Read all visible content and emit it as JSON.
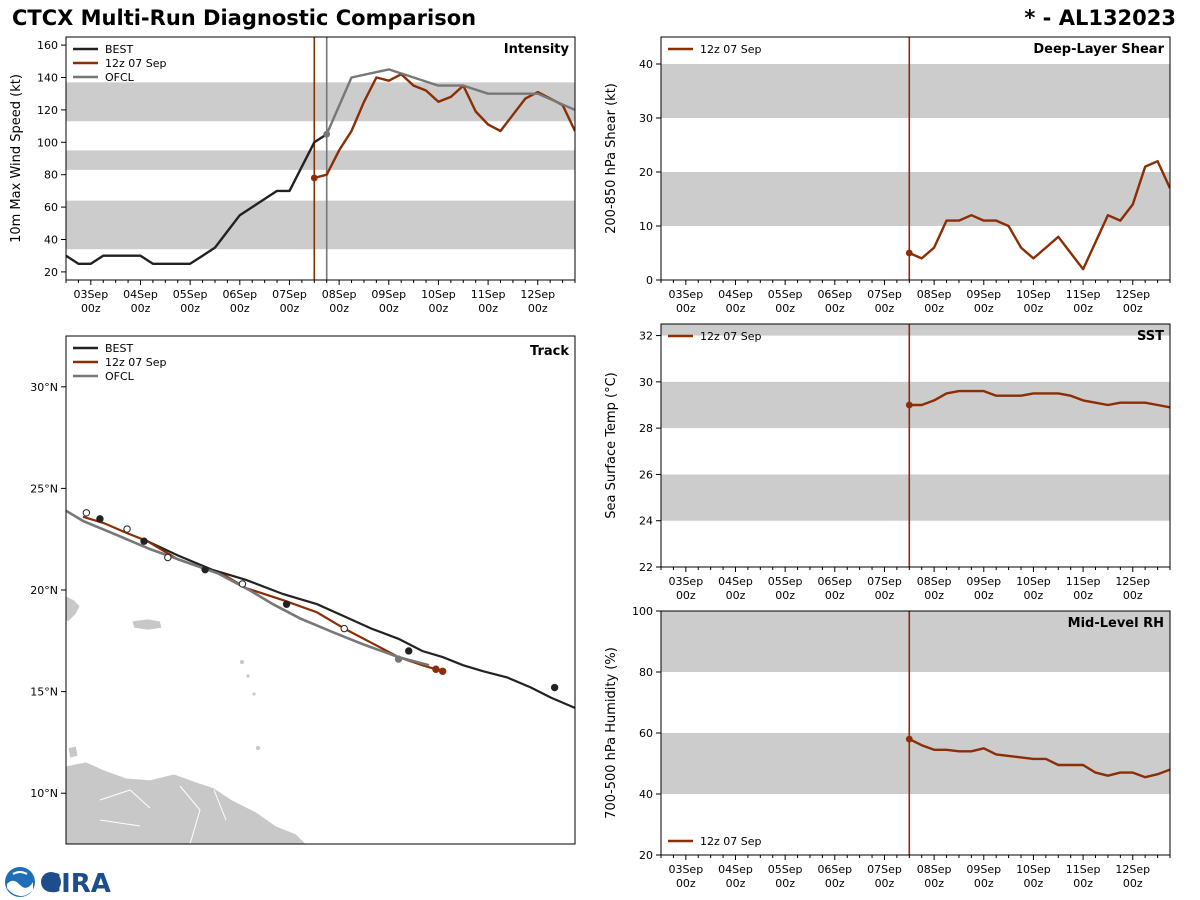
{
  "header": {
    "title": "CTCX Multi-Run Diagnostic Comparison",
    "storm": "* - AL132023"
  },
  "colors": {
    "best": "#222222",
    "run": "#8b2d05",
    "ofcl": "#777777",
    "band": "#cccccc",
    "land": "#c8c8c8"
  },
  "time_axis": {
    "range_hours": [
      -12,
      234
    ],
    "tick_hours": [
      0,
      24,
      48,
      72,
      96,
      120,
      144,
      168,
      192,
      216
    ],
    "tick_labels": [
      [
        "03Sep",
        "00z"
      ],
      [
        "04Sep",
        "00z"
      ],
      [
        "05Sep",
        "00z"
      ],
      [
        "06Sep",
        "00z"
      ],
      [
        "07Sep",
        "00z"
      ],
      [
        "08Sep",
        "00z"
      ],
      [
        "09Sep",
        "00z"
      ],
      [
        "10Sep",
        "00z"
      ],
      [
        "11Sep",
        "00z"
      ],
      [
        "12Sep",
        "00z"
      ]
    ],
    "minor_step_hours": 6
  },
  "logo": {
    "text": "CIRA"
  },
  "chart_data": [
    {
      "id": "intensity",
      "type": "line",
      "title": "Intensity",
      "ylabel": "10m Max Wind Speed (kt)",
      "ylim": [
        15,
        165
      ],
      "yticks": [
        20,
        40,
        60,
        80,
        100,
        120,
        140,
        160
      ],
      "bands": [
        [
          34,
          64
        ],
        [
          83,
          95
        ],
        [
          113,
          137
        ]
      ],
      "vlines": [
        {
          "x": 108,
          "series": "run"
        },
        {
          "x": 114,
          "series": "ofcl"
        }
      ],
      "legend": {
        "position": "top-left",
        "entries": [
          {
            "label": "BEST",
            "series": "best"
          },
          {
            "label": "12z 07 Sep",
            "series": "run"
          },
          {
            "label": "OFCL",
            "series": "ofcl"
          }
        ]
      },
      "series": [
        {
          "name": "BEST",
          "key": "best",
          "x": [
            -12,
            -6,
            0,
            6,
            12,
            18,
            24,
            30,
            36,
            42,
            48,
            54,
            60,
            66,
            72,
            78,
            84,
            90,
            96,
            102,
            108,
            114
          ],
          "y": [
            30,
            25,
            25,
            30,
            30,
            30,
            30,
            25,
            25,
            25,
            25,
            30,
            35,
            45,
            55,
            60,
            65,
            70,
            70,
            85,
            100,
            105
          ]
        },
        {
          "name": "12z 07 Sep",
          "key": "run",
          "marker_at_start": true,
          "x": [
            108,
            114,
            120,
            126,
            132,
            138,
            144,
            150,
            156,
            162,
            168,
            174,
            180,
            186,
            192,
            198,
            204,
            210,
            216,
            222,
            228,
            234
          ],
          "y": [
            78,
            80,
            95,
            107,
            125,
            140,
            138,
            142,
            135,
            132,
            125,
            128,
            135,
            119,
            111,
            107,
            117,
            127,
            131,
            127,
            123,
            107
          ]
        },
        {
          "name": "OFCL",
          "key": "ofcl",
          "marker_at_start": true,
          "x": [
            114,
            126,
            144,
            168,
            180,
            192,
            216,
            234
          ],
          "y": [
            105,
            140,
            145,
            135,
            135,
            130,
            130,
            120
          ]
        }
      ]
    },
    {
      "id": "shear",
      "type": "line",
      "title": "Deep-Layer Shear",
      "ylabel": "200-850 hPa Shear (kt)",
      "ylim": [
        0,
        45
      ],
      "yticks": [
        0,
        10,
        20,
        30,
        40
      ],
      "bands": [
        [
          10,
          20
        ],
        [
          30,
          40
        ]
      ],
      "vlines": [
        {
          "x": 108,
          "series": "run"
        }
      ],
      "legend": {
        "position": "top-left",
        "entries": [
          {
            "label": "12z 07 Sep",
            "series": "run"
          }
        ]
      },
      "series": [
        {
          "name": "12z 07 Sep",
          "key": "run",
          "marker_at_start": true,
          "x": [
            108,
            114,
            120,
            126,
            132,
            138,
            144,
            150,
            156,
            162,
            168,
            174,
            180,
            186,
            192,
            198,
            204,
            210,
            216,
            222,
            228,
            234
          ],
          "y": [
            5,
            4,
            6,
            11,
            11,
            12,
            11,
            11,
            10,
            6,
            4,
            6,
            8,
            5,
            2,
            7,
            12,
            11,
            14,
            21,
            22,
            17
          ]
        }
      ]
    },
    {
      "id": "sst",
      "type": "line",
      "title": "SST",
      "ylabel": "Sea Surface Temp (°C)",
      "ylim": [
        22,
        32.5
      ],
      "yticks": [
        22,
        24,
        26,
        28,
        30,
        32
      ],
      "bands": [
        [
          24,
          26
        ],
        [
          28,
          30
        ],
        [
          32,
          32.5
        ]
      ],
      "vlines": [
        {
          "x": 108,
          "series": "run"
        }
      ],
      "legend": {
        "position": "top-left",
        "entries": [
          {
            "label": "12z 07 Sep",
            "series": "run"
          }
        ]
      },
      "series": [
        {
          "name": "12z 07 Sep",
          "key": "run",
          "marker_at_start": true,
          "x": [
            108,
            114,
            120,
            126,
            132,
            138,
            144,
            150,
            156,
            162,
            168,
            174,
            180,
            186,
            192,
            198,
            204,
            210,
            216,
            222,
            228,
            234
          ],
          "y": [
            29.0,
            29.0,
            29.2,
            29.5,
            29.6,
            29.6,
            29.6,
            29.4,
            29.4,
            29.4,
            29.5,
            29.5,
            29.5,
            29.4,
            29.2,
            29.1,
            29.0,
            29.1,
            29.1,
            29.1,
            29.0,
            28.9
          ]
        }
      ]
    },
    {
      "id": "rh",
      "type": "line",
      "title": "Mid-Level RH",
      "ylabel": "700-500 hPa Humidity (%)",
      "ylim": [
        20,
        100
      ],
      "yticks": [
        20,
        40,
        60,
        80,
        100
      ],
      "bands": [
        [
          40,
          60
        ],
        [
          80,
          100
        ]
      ],
      "vlines": [
        {
          "x": 108,
          "series": "run"
        }
      ],
      "legend": {
        "position": "bottom-left",
        "entries": [
          {
            "label": "12z 07 Sep",
            "series": "run"
          }
        ]
      },
      "series": [
        {
          "name": "12z 07 Sep",
          "key": "run",
          "marker_at_start": true,
          "x": [
            108,
            114,
            120,
            126,
            132,
            138,
            144,
            150,
            156,
            162,
            168,
            174,
            180,
            186,
            192,
            198,
            204,
            210,
            216,
            222,
            228,
            234
          ],
          "y": [
            58,
            56,
            54.5,
            54.5,
            54,
            54,
            55,
            53,
            52.5,
            52,
            51.5,
            51.5,
            49.5,
            49.5,
            49.5,
            47,
            46,
            47,
            47,
            45.5,
            46.5,
            48
          ]
        }
      ]
    },
    {
      "id": "track",
      "type": "scatter",
      "title": "Track",
      "xlim": [
        -67.5,
        -52.5
      ],
      "ylim": [
        7.5,
        32.5
      ],
      "yticks": [
        10,
        15,
        20,
        25,
        30
      ],
      "ytick_labels": [
        "10°N",
        "15°N",
        "20°N",
        "25°N",
        "30°N"
      ],
      "legend": {
        "position": "top-left",
        "entries": [
          {
            "label": "BEST",
            "series": "best"
          },
          {
            "label": "12z 07 Sep",
            "series": "run"
          },
          {
            "label": "OFCL",
            "series": "ofcl"
          }
        ]
      },
      "series": [
        {
          "name": "BEST",
          "key": "best",
          "lon": [
            -52.5,
            -53.2,
            -53.8,
            -54.5,
            -55.2,
            -55.8,
            -56.4,
            -57.0,
            -57.7,
            -58.5,
            -59.3,
            -60.1,
            -61.1,
            -62.2,
            -63.2,
            -64.2,
            -65.1
          ],
          "lat": [
            14.2,
            14.7,
            15.2,
            15.7,
            16.0,
            16.3,
            16.7,
            17.0,
            17.6,
            18.1,
            18.7,
            19.3,
            19.8,
            20.5,
            21.0,
            21.7,
            22.4
          ]
        },
        {
          "name": "12z 07 Sep",
          "key": "run",
          "lon": [
            -56.4,
            -57.0,
            -57.7,
            -58.5,
            -59.3,
            -60.1,
            -61.1,
            -62.2,
            -62.8,
            -63.5,
            -64.2,
            -65.1,
            -65.7,
            -66.4,
            -67.0
          ],
          "lat": [
            16.0,
            16.3,
            16.7,
            17.4,
            18.1,
            18.9,
            19.5,
            20.1,
            20.7,
            21.1,
            21.5,
            22.4,
            22.8,
            23.3,
            23.6
          ]
        },
        {
          "name": "OFCL",
          "key": "ofcl",
          "lon": [
            -56.8,
            -57.7,
            -58.7,
            -59.6,
            -60.6,
            -61.4,
            -62.1,
            -63.0,
            -64.0,
            -65.0,
            -66.0,
            -67.0,
            -67.6
          ],
          "lat": [
            16.3,
            16.7,
            17.3,
            17.9,
            18.6,
            19.3,
            20.0,
            20.8,
            21.4,
            22.0,
            22.7,
            23.4,
            24.0
          ]
        }
      ],
      "markers": [
        {
          "lon": -53.1,
          "lat": 15.2,
          "style": "filled",
          "series": "best"
        },
        {
          "lon": -57.4,
          "lat": 17.0,
          "style": "filled",
          "series": "best"
        },
        {
          "lon": -61.0,
          "lat": 19.3,
          "style": "filled",
          "series": "best"
        },
        {
          "lon": -63.4,
          "lat": 21.0,
          "style": "filled",
          "series": "best"
        },
        {
          "lon": -65.2,
          "lat": 22.4,
          "style": "filled",
          "series": "best"
        },
        {
          "lon": -66.5,
          "lat": 23.5,
          "style": "filled",
          "series": "best"
        },
        {
          "lon": -56.4,
          "lat": 16.0,
          "style": "filled",
          "series": "run"
        },
        {
          "lon": -56.6,
          "lat": 16.1,
          "style": "filled",
          "series": "run"
        },
        {
          "lon": -57.7,
          "lat": 16.6,
          "style": "grey",
          "series": "ofcl"
        },
        {
          "lon": -59.3,
          "lat": 18.1,
          "style": "open",
          "series": "ofcl"
        },
        {
          "lon": -62.3,
          "lat": 20.3,
          "style": "open",
          "series": "ofcl"
        },
        {
          "lon": -64.5,
          "lat": 21.6,
          "style": "open",
          "series": "ofcl"
        },
        {
          "lon": -65.7,
          "lat": 23.0,
          "style": "open",
          "series": "ofcl"
        },
        {
          "lon": -66.9,
          "lat": 23.8,
          "style": "open",
          "series": "ofcl"
        }
      ]
    }
  ]
}
